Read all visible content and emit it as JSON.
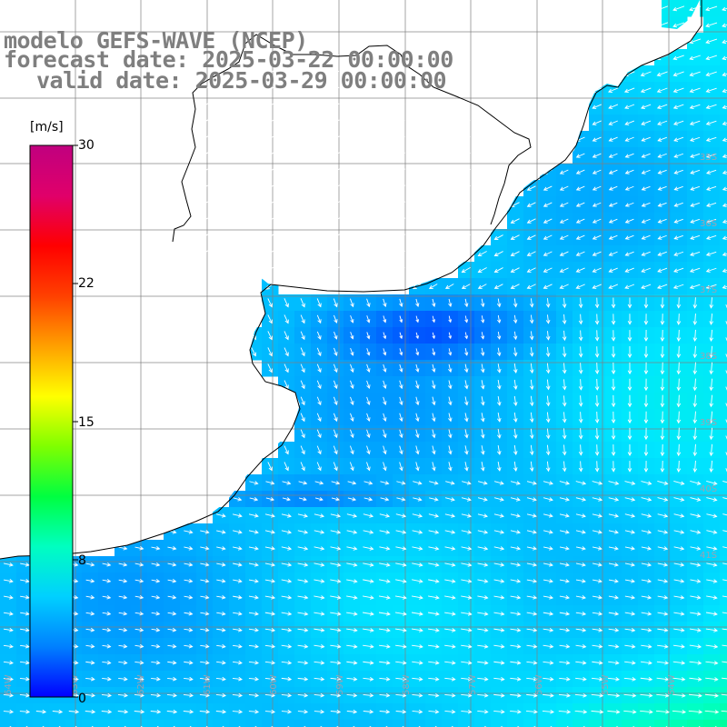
{
  "header": {
    "title": "modelo GEFS-WAVE (NCEP)",
    "forecast": "forecast date: 2025-03-22 00:00:00",
    "valid": "valid date: 2025-03-29 00:00:00"
  },
  "colorbar": {
    "unit": "[m/s]",
    "min": 0,
    "max": 30,
    "labels": [
      "30",
      "22",
      "15",
      "8",
      "0"
    ],
    "colors": [
      "#0000ff",
      "#0080ff",
      "#00d0ff",
      "#00ffc0",
      "#00ff40",
      "#80ff00",
      "#ffff00",
      "#ffa000",
      "#ff4000",
      "#ff0000",
      "#e0006a",
      "#c0007f"
    ]
  },
  "map": {
    "land_color": "#ffffff",
    "grid_color": "#808080",
    "coast_color": "#000000",
    "arrow_color": "#ffffff",
    "lat_labels": [
      "35S",
      "36S",
      "37S",
      "38S",
      "39S",
      "40S",
      "41S"
    ],
    "lon_labels": [
      "64W",
      "63W",
      "62W",
      "61W",
      "60W",
      "59W",
      "58W",
      "57W",
      "56W",
      "55W",
      "54W",
      "53W"
    ]
  }
}
